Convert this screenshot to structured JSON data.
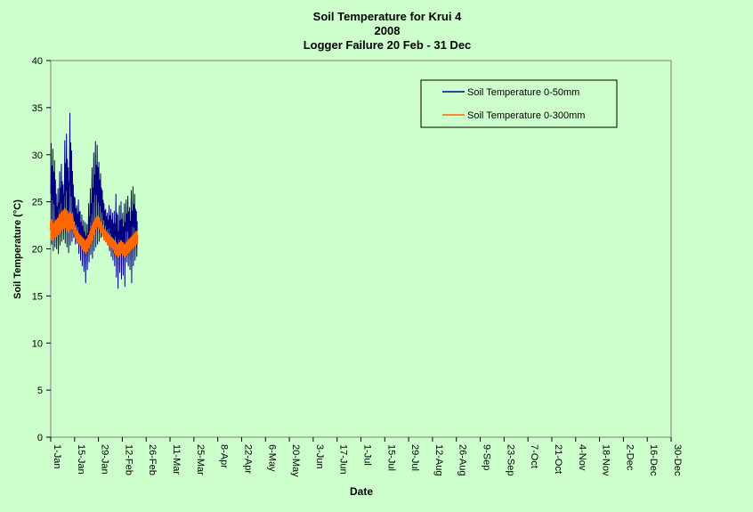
{
  "chart_data": {
    "type": "line",
    "title_lines": [
      "Soil Temperature for Krui 4",
      "2008",
      "Logger Failure 20 Feb - 31 Dec"
    ],
    "xlabel": "Date",
    "ylabel": "Soil Temperature (°C)",
    "ylim": [
      0,
      40
    ],
    "ytick_labels": [
      "0",
      "5",
      "10",
      "15",
      "20",
      "25",
      "30",
      "35",
      "40"
    ],
    "xlim": [
      "2008-01-01",
      "2008-12-30"
    ],
    "xtick_labels": [
      "1-Jan",
      "15-Jan",
      "29-Jan",
      "12-Feb",
      "26-Feb",
      "11-Mar",
      "25-Mar",
      "8-Apr",
      "22-Apr",
      "6-May",
      "20-May",
      "3-Jun",
      "17-Jun",
      "1-Jul",
      "15-Jul",
      "29-Jul",
      "12-Aug",
      "26-Aug",
      "9-Sep",
      "23-Sep",
      "7-Oct",
      "21-Oct",
      "4-Nov",
      "18-Nov",
      "2-Dec",
      "16-Dec",
      "30-Dec"
    ],
    "grid": false,
    "legend_position": "top-right",
    "series": [
      {
        "name": "Soil Temperature  0-50mm",
        "color": "#000080",
        "x": [
          "2008-01-01",
          "2008-01-02",
          "2008-01-03",
          "2008-01-04",
          "2008-01-05",
          "2008-01-06",
          "2008-01-07",
          "2008-01-08",
          "2008-01-09",
          "2008-01-10",
          "2008-01-11",
          "2008-01-12",
          "2008-01-13",
          "2008-01-14",
          "2008-01-15",
          "2008-01-16",
          "2008-01-17",
          "2008-01-18",
          "2008-01-19",
          "2008-01-20",
          "2008-01-21",
          "2008-01-22",
          "2008-01-23",
          "2008-01-24",
          "2008-01-25",
          "2008-01-26",
          "2008-01-27",
          "2008-01-28",
          "2008-01-29",
          "2008-01-30",
          "2008-01-31",
          "2008-02-01",
          "2008-02-02",
          "2008-02-03",
          "2008-02-04",
          "2008-02-05",
          "2008-02-06",
          "2008-02-07",
          "2008-02-08",
          "2008-02-09",
          "2008-02-10",
          "2008-02-11",
          "2008-02-12",
          "2008-02-13",
          "2008-02-14",
          "2008-02-15",
          "2008-02-16",
          "2008-02-17",
          "2008-02-18",
          "2008-02-19",
          "2008-02-20"
        ],
        "daily_min": [
          20.5,
          19.8,
          20.2,
          20.0,
          19.5,
          20.4,
          20.8,
          21.0,
          20.6,
          20.2,
          19.6,
          20.4,
          20.8,
          21.2,
          20.5,
          20.6,
          19.5,
          18.8,
          18.2,
          17.6,
          16.4,
          17.8,
          18.6,
          19.4,
          19.0,
          19.8,
          20.2,
          20.5,
          20.8,
          21.2,
          21.6,
          21.4,
          20.8,
          20.4,
          19.8,
          19.2,
          18.8,
          18.2,
          17.0,
          15.8,
          17.5,
          16.8,
          17.2,
          16.0,
          18.6,
          18.2,
          17.8,
          16.4,
          18.2,
          18.8,
          19.2
        ],
        "daily_max": [
          31.2,
          30.6,
          29.4,
          25.8,
          26.4,
          28.2,
          29.0,
          26.8,
          31.5,
          32.2,
          28.6,
          34.4,
          30.4,
          26.8,
          25.4,
          24.6,
          25.2,
          24.0,
          23.6,
          23.0,
          22.8,
          22.6,
          24.8,
          26.4,
          28.6,
          30.2,
          31.4,
          31.0,
          29.2,
          28.0,
          26.2,
          24.8,
          24.2,
          23.8,
          24.6,
          24.2,
          23.8,
          24.0,
          25.8,
          23.6,
          24.6,
          25.0,
          23.8,
          24.8,
          25.2,
          25.6,
          24.4,
          26.2,
          26.6,
          25.8,
          24.0
        ]
      },
      {
        "name": "Soil Temperature  0-300mm",
        "color": "#ff6600",
        "x": [
          "2008-01-01",
          "2008-01-02",
          "2008-01-03",
          "2008-01-04",
          "2008-01-05",
          "2008-01-06",
          "2008-01-07",
          "2008-01-08",
          "2008-01-09",
          "2008-01-10",
          "2008-01-11",
          "2008-01-12",
          "2008-01-13",
          "2008-01-14",
          "2008-01-15",
          "2008-01-16",
          "2008-01-17",
          "2008-01-18",
          "2008-01-19",
          "2008-01-20",
          "2008-01-21",
          "2008-01-22",
          "2008-01-23",
          "2008-01-24",
          "2008-01-25",
          "2008-01-26",
          "2008-01-27",
          "2008-01-28",
          "2008-01-29",
          "2008-01-30",
          "2008-01-31",
          "2008-02-01",
          "2008-02-02",
          "2008-02-03",
          "2008-02-04",
          "2008-02-05",
          "2008-02-06",
          "2008-02-07",
          "2008-02-08",
          "2008-02-09",
          "2008-02-10",
          "2008-02-11",
          "2008-02-12",
          "2008-02-13",
          "2008-02-14",
          "2008-02-15",
          "2008-02-16",
          "2008-02-17",
          "2008-02-18",
          "2008-02-19",
          "2008-02-20"
        ],
        "daily_min": [
          21.0,
          21.0,
          21.3,
          21.4,
          21.6,
          21.8,
          22.0,
          22.2,
          22.3,
          22.0,
          21.8,
          22.1,
          22.2,
          21.8,
          21.2,
          20.8,
          20.6,
          20.4,
          20.0,
          19.8,
          19.6,
          19.8,
          20.2,
          20.6,
          21.0,
          21.6,
          22.2,
          22.4,
          22.2,
          21.8,
          21.4,
          21.0,
          20.8,
          20.6,
          20.4,
          20.2,
          20.0,
          19.6,
          19.4,
          19.2,
          19.4,
          19.6,
          19.4,
          19.2,
          19.4,
          19.6,
          19.8,
          20.0,
          20.2,
          20.4,
          20.6
        ],
        "daily_max": [
          23.0,
          22.6,
          22.8,
          23.0,
          23.2,
          23.6,
          23.8,
          24.0,
          24.2,
          24.0,
          23.6,
          23.8,
          23.6,
          22.8,
          22.2,
          21.8,
          21.6,
          21.4,
          21.2,
          21.0,
          20.8,
          21.0,
          21.4,
          21.8,
          22.4,
          22.8,
          23.2,
          23.4,
          23.2,
          22.8,
          22.4,
          22.0,
          21.8,
          21.6,
          21.4,
          21.2,
          21.0,
          20.8,
          20.6,
          20.4,
          20.6,
          20.8,
          20.6,
          20.4,
          20.6,
          20.8,
          21.0,
          21.2,
          21.4,
          21.6,
          21.8
        ]
      }
    ]
  }
}
